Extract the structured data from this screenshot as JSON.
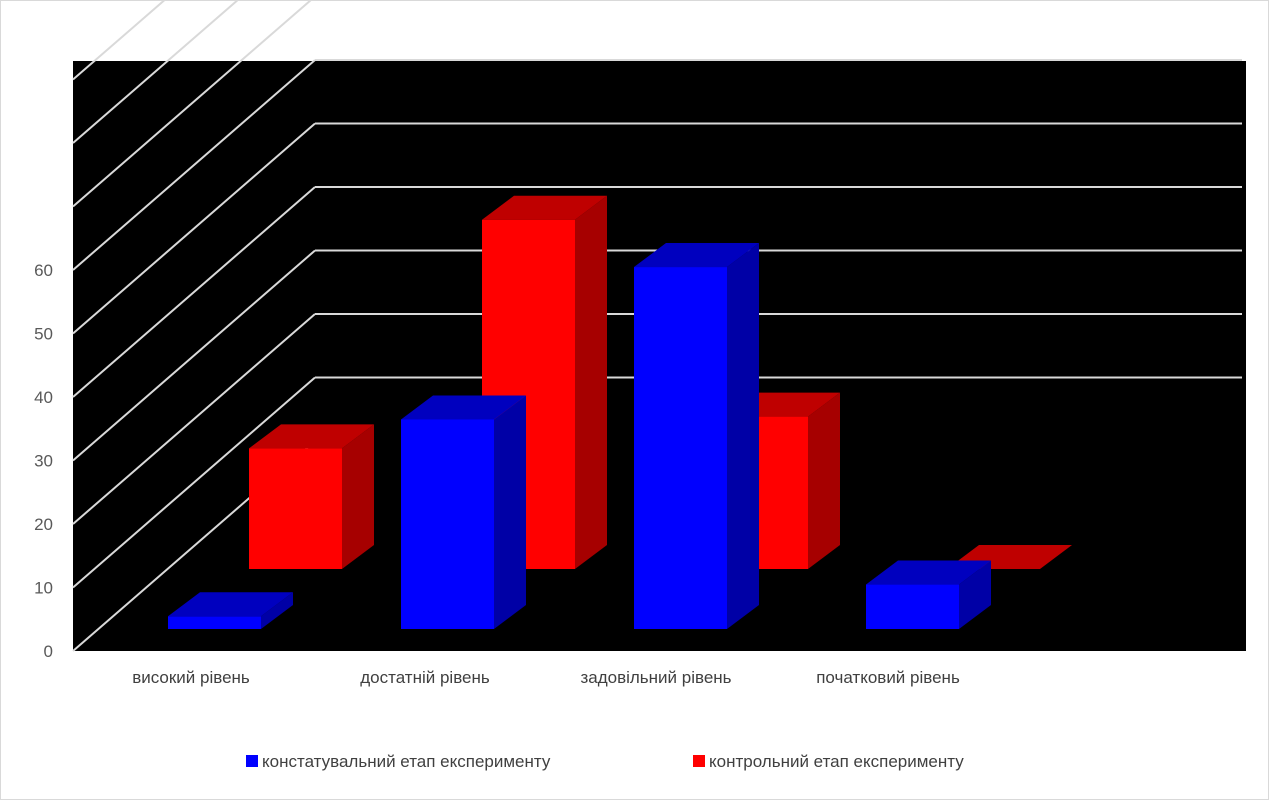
{
  "chart_data": {
    "type": "bar",
    "style": "3d-clustered-columns",
    "categories": [
      "високий рівень",
      "достатній рівень",
      "задовільний рівень",
      "початковий рівень"
    ],
    "series": [
      {
        "name": "констатувальний етап експерименту",
        "color": "#0000FF",
        "values": [
          2,
          33,
          57,
          7
        ]
      },
      {
        "name": "контрольний етап експерименту",
        "color": "#FF0000",
        "values": [
          19,
          55,
          24,
          0
        ]
      }
    ],
    "yticks": [
      "0",
      "10",
      "20",
      "30",
      "40",
      "50",
      "60"
    ],
    "ylim": [
      0,
      90
    ],
    "grid": true,
    "legend_position": "bottom",
    "plot_background": "#000000",
    "gridline_color": "#d9d9d9"
  }
}
